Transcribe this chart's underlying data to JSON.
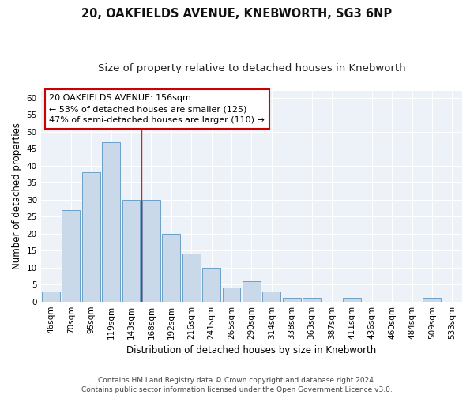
{
  "title1": "20, OAKFIELDS AVENUE, KNEBWORTH, SG3 6NP",
  "title2": "Size of property relative to detached houses in Knebworth",
  "xlabel": "Distribution of detached houses by size in Knebworth",
  "ylabel": "Number of detached properties",
  "categories": [
    "46sqm",
    "70sqm",
    "95sqm",
    "119sqm",
    "143sqm",
    "168sqm",
    "192sqm",
    "216sqm",
    "241sqm",
    "265sqm",
    "290sqm",
    "314sqm",
    "338sqm",
    "363sqm",
    "387sqm",
    "411sqm",
    "436sqm",
    "460sqm",
    "484sqm",
    "509sqm",
    "533sqm"
  ],
  "values": [
    3,
    27,
    38,
    47,
    30,
    30,
    20,
    14,
    10,
    4,
    6,
    3,
    1,
    1,
    0,
    1,
    0,
    0,
    0,
    1,
    0
  ],
  "bar_color": "#c9d9ea",
  "bar_edge_color": "#6ca0c8",
  "red_line_x": 4.5,
  "annotation_line1": "20 OAKFIELDS AVENUE: 156sqm",
  "annotation_line2": "← 53% of detached houses are smaller (125)",
  "annotation_line3": "47% of semi-detached houses are larger (110) →",
  "annotation_box_facecolor": "#ffffff",
  "annotation_box_edgecolor": "#cc0000",
  "ylim_max": 62,
  "yticks": [
    0,
    5,
    10,
    15,
    20,
    25,
    30,
    35,
    40,
    45,
    50,
    55,
    60
  ],
  "footer1": "Contains HM Land Registry data © Crown copyright and database right 2024.",
  "footer2": "Contains public sector information licensed under the Open Government Licence v3.0.",
  "plot_bg_color": "#edf2f9",
  "fig_bg_color": "#ffffff",
  "grid_color": "#ffffff",
  "title1_fontsize": 10.5,
  "title2_fontsize": 9.5,
  "axis_label_fontsize": 8.5,
  "tick_fontsize": 7.5,
  "annotation_fontsize": 8,
  "footer_fontsize": 6.5
}
